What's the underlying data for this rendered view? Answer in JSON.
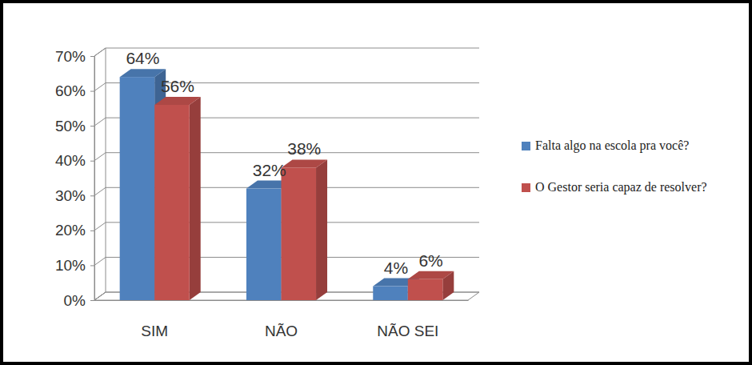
{
  "chart_data": {
    "type": "bar",
    "categories": [
      "SIM",
      "NÃO",
      "NÃO SEI"
    ],
    "series": [
      {
        "name": "Falta algo na escola pra você?",
        "color": "#4f81bd",
        "values": [
          64,
          32,
          4
        ],
        "value_labels": [
          "64%",
          "32%",
          "4%"
        ]
      },
      {
        "name": "O Gestor seria capaz de resolver?",
        "color": "#c0504d",
        "values": [
          56,
          38,
          6
        ],
        "value_labels": [
          "56%",
          "38%",
          "6%"
        ]
      }
    ],
    "ylim": [
      0,
      70
    ],
    "yticks": [
      {
        "value": 0,
        "label": "0%"
      },
      {
        "value": 10,
        "label": "10%"
      },
      {
        "value": 20,
        "label": "20%"
      },
      {
        "value": 30,
        "label": "30%"
      },
      {
        "value": 40,
        "label": "40%"
      },
      {
        "value": 50,
        "label": "50%"
      },
      {
        "value": 60,
        "label": "60%"
      },
      {
        "value": 70,
        "label": "70%"
      }
    ],
    "grid": true,
    "legend": "right",
    "data_labels": true
  }
}
